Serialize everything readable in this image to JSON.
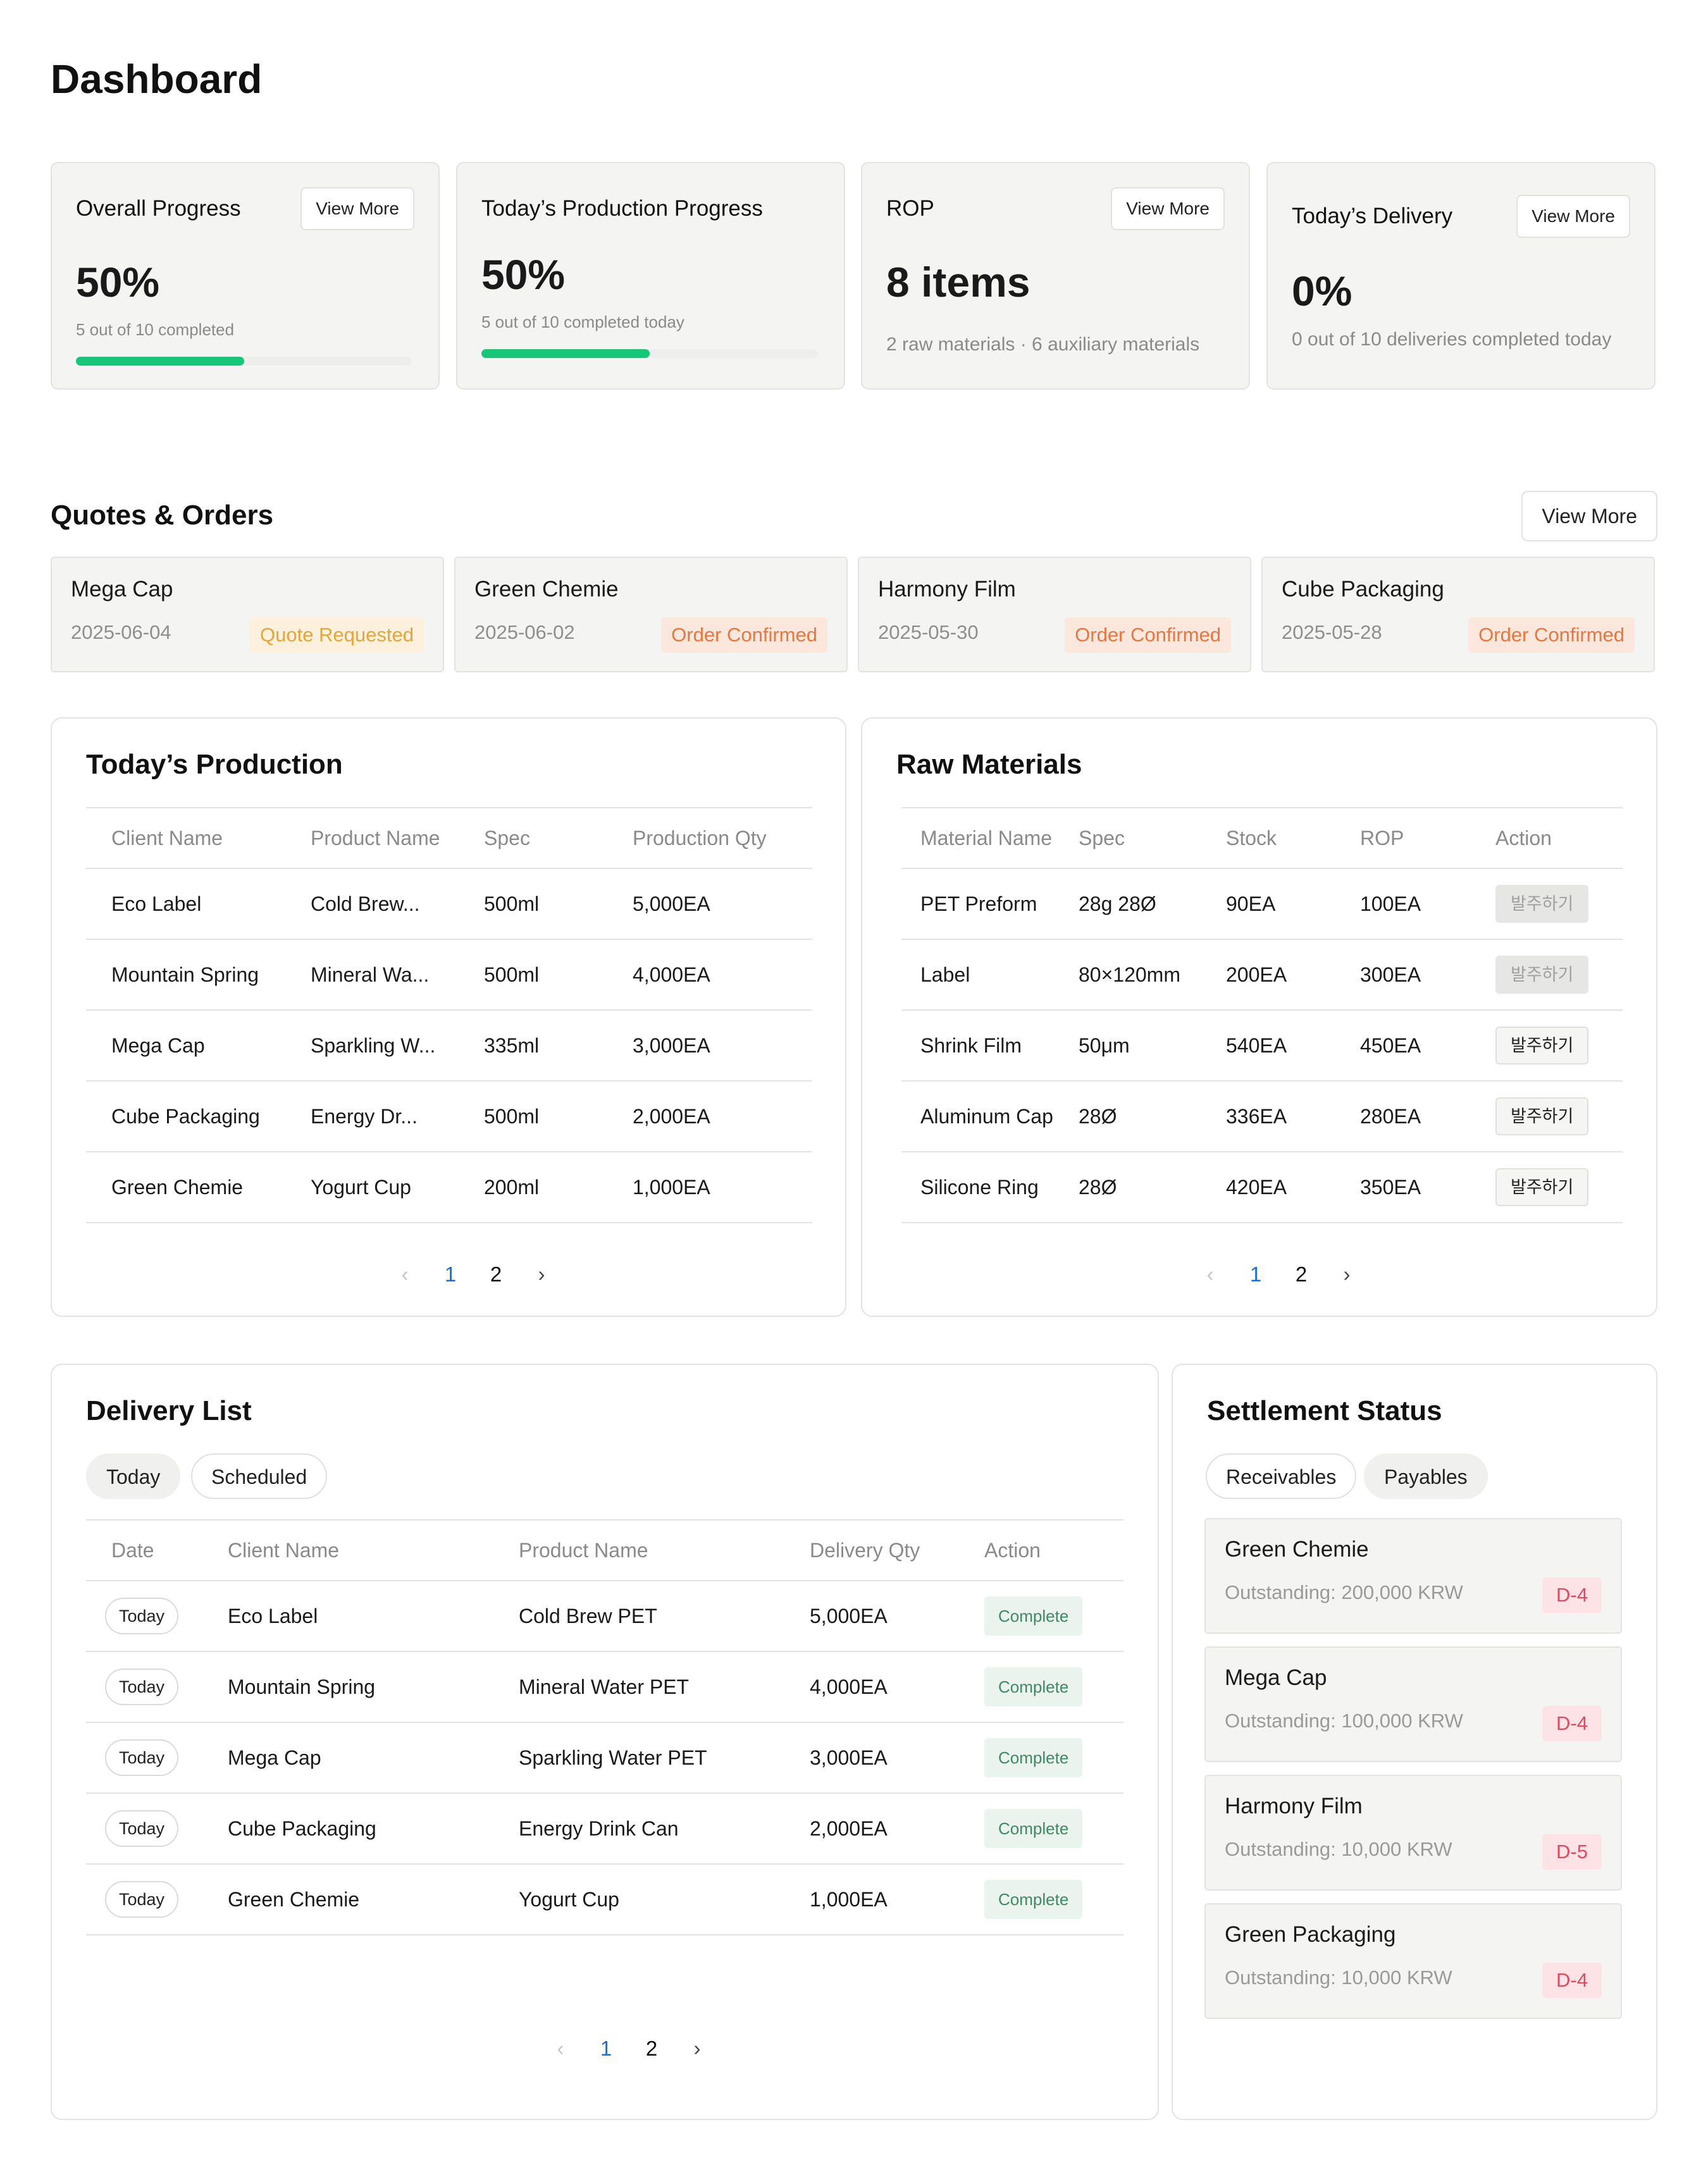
{
  "page": {
    "title": "Dashboard"
  },
  "metrics": [
    {
      "title": "Overall Progress",
      "value": "50%",
      "sub": "5 out of 10 completed",
      "button": "View More",
      "progress": 0.5
    },
    {
      "title": "Today’s Production Progress",
      "value": "50%",
      "sub": "5 out of 10 completed today",
      "progress": 0.5
    },
    {
      "title": "ROP",
      "value": "8 items",
      "sub": "2 raw materials · 6 auxiliary materials",
      "button": "View More"
    },
    {
      "title": "Today’s Delivery",
      "value": "0%",
      "sub": "0 out of 10 deliveries completed today",
      "button": "View More"
    }
  ],
  "quotes": {
    "title": "Quotes & Orders",
    "button": "View More",
    "items": [
      {
        "name": "Mega Cap",
        "date": "2025-06-04",
        "status": "Quote Requested"
      },
      {
        "name": "Green Chemie",
        "date": "2025-06-02",
        "status": "Order Confirmed"
      },
      {
        "name": "Harmony Film",
        "date": "2025-05-30",
        "status": "Order Confirmed"
      },
      {
        "name": "Cube Packaging",
        "date": "2025-05-28",
        "status": "Order Confirmed"
      }
    ]
  },
  "production": {
    "title": "Today’s Production",
    "headers": [
      "Client Name",
      "Product Name",
      "Spec",
      "Production Qty"
    ],
    "rows": [
      [
        "Eco Label",
        "Cold Brew...",
        "500ml",
        "5,000EA"
      ],
      [
        "Mountain Spring",
        "Mineral Wa...",
        "500ml",
        "4,000EA"
      ],
      [
        "Mega Cap",
        "Sparkling W...",
        "335ml",
        "3,000EA"
      ],
      [
        "Cube Packaging",
        "Energy Dr...",
        "500ml",
        "2,000EA"
      ],
      [
        "Green Chemie",
        "Yogurt Cup",
        "200ml",
        "1,000EA"
      ]
    ],
    "pager": {
      "prev": "‹",
      "pages": [
        "1",
        "2"
      ],
      "next": "›"
    }
  },
  "raw": {
    "title": "Raw Materials",
    "headers": [
      "Material Name",
      "Spec",
      "Stock",
      "ROP",
      "Action"
    ],
    "rows": [
      [
        "PET Preform",
        "28g 28Ø",
        "90EA",
        "100EA",
        "발주하기"
      ],
      [
        "Label",
        "80×120mm",
        "200EA",
        "300EA",
        "발주하기"
      ],
      [
        "Shrink Film",
        "50μm",
        "540EA",
        "450EA",
        "발주하기"
      ],
      [
        "Aluminum Cap",
        "28Ø",
        "336EA",
        "280EA",
        "발주하기"
      ],
      [
        "Silicone Ring",
        "28Ø",
        "420EA",
        "350EA",
        "발주하기"
      ]
    ],
    "pager": {
      "prev": "‹",
      "pages": [
        "1",
        "2"
      ],
      "next": "›"
    }
  },
  "delivery": {
    "title": "Delivery List",
    "tabs": [
      "Today",
      "Scheduled"
    ],
    "headers": [
      "Date",
      "Client Name",
      "Product Name",
      "Delivery Qty",
      "Action"
    ],
    "rows": [
      [
        "Today",
        "Eco Label",
        "Cold Brew PET",
        "5,000EA",
        "Complete"
      ],
      [
        "Today",
        "Mountain Spring",
        "Mineral Water PET",
        "4,000EA",
        "Complete"
      ],
      [
        "Today",
        "Mega Cap",
        "Sparkling Water PET",
        "3,000EA",
        "Complete"
      ],
      [
        "Today",
        "Cube Packaging",
        "Energy Drink Can",
        "2,000EA",
        "Complete"
      ],
      [
        "Today",
        "Green Chemie",
        "Yogurt Cup",
        "1,000EA",
        "Complete"
      ]
    ],
    "pager": {
      "prev": "‹",
      "pages": [
        "1",
        "2"
      ],
      "next": "›"
    }
  },
  "settlement": {
    "title": "Settlement Status",
    "tabs": [
      "Receivables",
      "Payables"
    ],
    "items": [
      {
        "name": "Green Chemie",
        "outstanding": "Outstanding: 200,000 KRW",
        "due": "D-4"
      },
      {
        "name": "Mega Cap",
        "outstanding": "Outstanding: 100,000 KRW",
        "due": "D-4"
      },
      {
        "name": "Harmony Film",
        "outstanding": "Outstanding: 10,000 KRW",
        "due": "D-5"
      },
      {
        "name": "Green Packaging",
        "outstanding": "Outstanding: 10,000 KRW",
        "due": "D-4"
      }
    ]
  },
  "colors": {
    "accent": "#1b6fd6",
    "progress": "#16c77a",
    "due": "#e04a5e",
    "confirmed": "#e8773f",
    "requested": "#e5a636"
  }
}
